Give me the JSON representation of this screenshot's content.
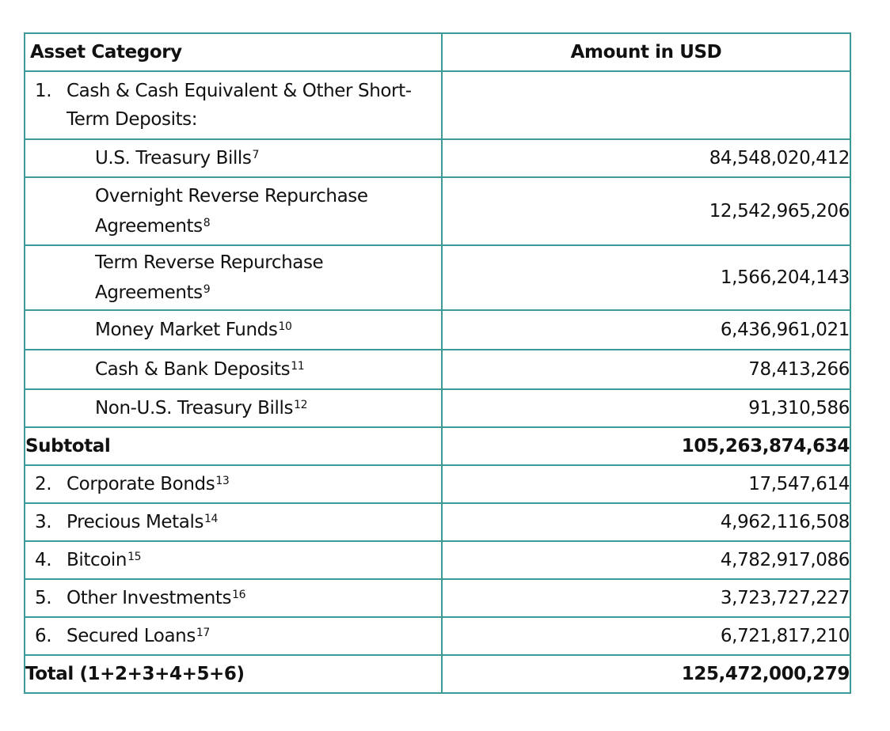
{
  "table": {
    "headers": [
      "Asset Category",
      "Amount in USD"
    ],
    "cash_section": {
      "number": "1.",
      "label": "Cash & Cash Equivalent & Other Short-Term Deposits:",
      "amount": ""
    },
    "sub_rows": [
      {
        "label": "U.S. Treasury Bills",
        "note": "7",
        "amount": "84,548,020,412"
      },
      {
        "label": "Overnight Reverse Repurchase Agreements",
        "note": "8",
        "amount": "12,542,965,206"
      },
      {
        "label": "Term Reverse Repurchase Agreements",
        "note": "9",
        "amount": "1,566,204,143"
      },
      {
        "label": "Money Market Funds",
        "note": "10",
        "amount": "6,436,961,021"
      },
      {
        "label": "Cash & Bank Deposits",
        "note": "11",
        "amount": "78,413,266"
      },
      {
        "label": "Non-U.S. Treasury Bills",
        "note": "12",
        "amount": "91,310,586"
      }
    ],
    "subtotal": {
      "label": "Subtotal",
      "amount": "105,263,874,634"
    },
    "main_rows": [
      {
        "number": "2.",
        "label": "Corporate Bonds",
        "note": "13",
        "amount": "17,547,614"
      },
      {
        "number": "3.",
        "label": "Precious Metals",
        "note": "14",
        "amount": "4,962,116,508"
      },
      {
        "number": "4.",
        "label": "Bitcoin",
        "note": "15",
        "amount": "4,782,917,086"
      },
      {
        "number": "5.",
        "label": "Other Investments",
        "note": "16",
        "amount": "3,723,727,227"
      },
      {
        "number": "6.",
        "label": "Secured Loans",
        "note": "17",
        "amount": "6,721,817,210"
      }
    ],
    "total": {
      "label": "Total (1+2+3+4+5+6)",
      "amount": "125,472,000,279"
    }
  },
  "colors": {
    "border": "#3d9a98",
    "text": "#111111",
    "background": "#ffffff"
  }
}
